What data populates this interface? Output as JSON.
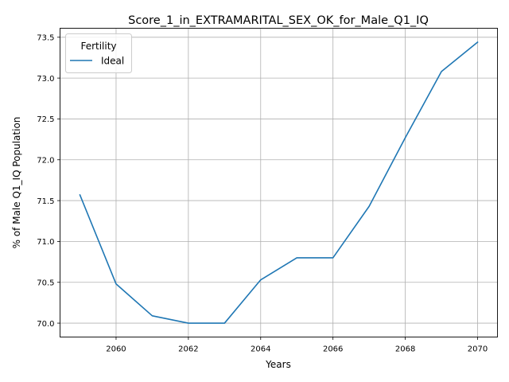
{
  "chart_data": {
    "type": "line",
    "title": "Score_1_in_EXTRAMARITAL_SEX_OK_for_Male_Q1_IQ",
    "xlabel": "Years",
    "ylabel": "% of Male Q1_IQ Population",
    "xlim": [
      2058.45,
      2070.55
    ],
    "ylim": [
      69.83,
      73.61
    ],
    "x_ticks": [
      2060,
      2062,
      2064,
      2066,
      2068,
      2070
    ],
    "y_ticks": [
      70.0,
      70.5,
      71.0,
      71.5,
      72.0,
      72.5,
      73.0,
      73.5
    ],
    "grid": true,
    "legend": {
      "title": "Fertility",
      "placement": "top-left"
    },
    "series": [
      {
        "name": "Ideal",
        "color": "#1f77b4",
        "x": [
          2059,
          2060,
          2061,
          2062,
          2063,
          2064,
          2065,
          2066,
          2067,
          2068,
          2069,
          2070
        ],
        "y": [
          71.57,
          70.48,
          70.09,
          70.0,
          70.0,
          70.53,
          70.8,
          70.8,
          71.43,
          72.27,
          73.08,
          73.44
        ]
      }
    ]
  }
}
